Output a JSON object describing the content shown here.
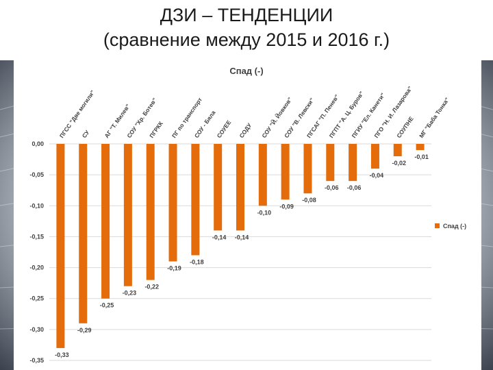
{
  "slide": {
    "title_line1": "ДЗИ – ТЕНДЕНЦИИ",
    "title_line2": "(сравнение между 2015 и 2016 г.)"
  },
  "colors": {
    "bar": "#e46c0a",
    "grid": "#d9d9d9",
    "text": "#404040"
  },
  "chart_data": {
    "type": "bar",
    "title": "Спад (-)",
    "categories": [
      "ПГСС \"Две могили\"",
      "СУ",
      "АГ \"Т. Милев\"",
      "СОУ \"Хр. Ботев\"",
      "ПГРКК",
      "ПГ по транспорт",
      "СОУ - Бяла",
      "СОУЕЕ",
      "СОДУ",
      "СОУ \"Й. Йовков\"",
      "СОУ \"В. Левски\"",
      "ПГСАГ \"П. Пенев\"",
      "ПГПТ \"А. Ц. Буров\"",
      "ПГИУ \"Ел. Канети\"",
      "ПГО \"Н. И. Лазарова\"",
      "СОУПНЕ",
      "МГ \"Баба Тонка\""
    ],
    "series": [
      {
        "name": "Спад (-)",
        "values": [
          -0.33,
          -0.29,
          -0.25,
          -0.23,
          -0.22,
          -0.19,
          -0.18,
          -0.14,
          -0.14,
          -0.1,
          -0.09,
          -0.08,
          -0.06,
          -0.06,
          -0.04,
          -0.02,
          -0.01
        ],
        "labels": [
          "-0,33",
          "-0,29",
          "-0,25",
          "-0,23",
          "-0,22",
          "-0,19",
          "-0,18",
          "-0,14",
          "-0,14",
          "-0,10",
          "-0,09",
          "-0,08",
          "-0,06",
          "-0,06",
          "-0,04",
          "-0,02",
          "-0,01"
        ]
      }
    ],
    "yticks": [
      0.0,
      -0.05,
      -0.1,
      -0.15,
      -0.2,
      -0.25,
      -0.3,
      -0.35
    ],
    "ytick_labels": [
      "0,00",
      "-0,05",
      "-0,10",
      "-0,15",
      "-0,20",
      "-0,25",
      "-0,30",
      "-0,35"
    ],
    "ylim": [
      -0.35,
      0.0
    ],
    "grid": true,
    "legend_position": "right"
  }
}
